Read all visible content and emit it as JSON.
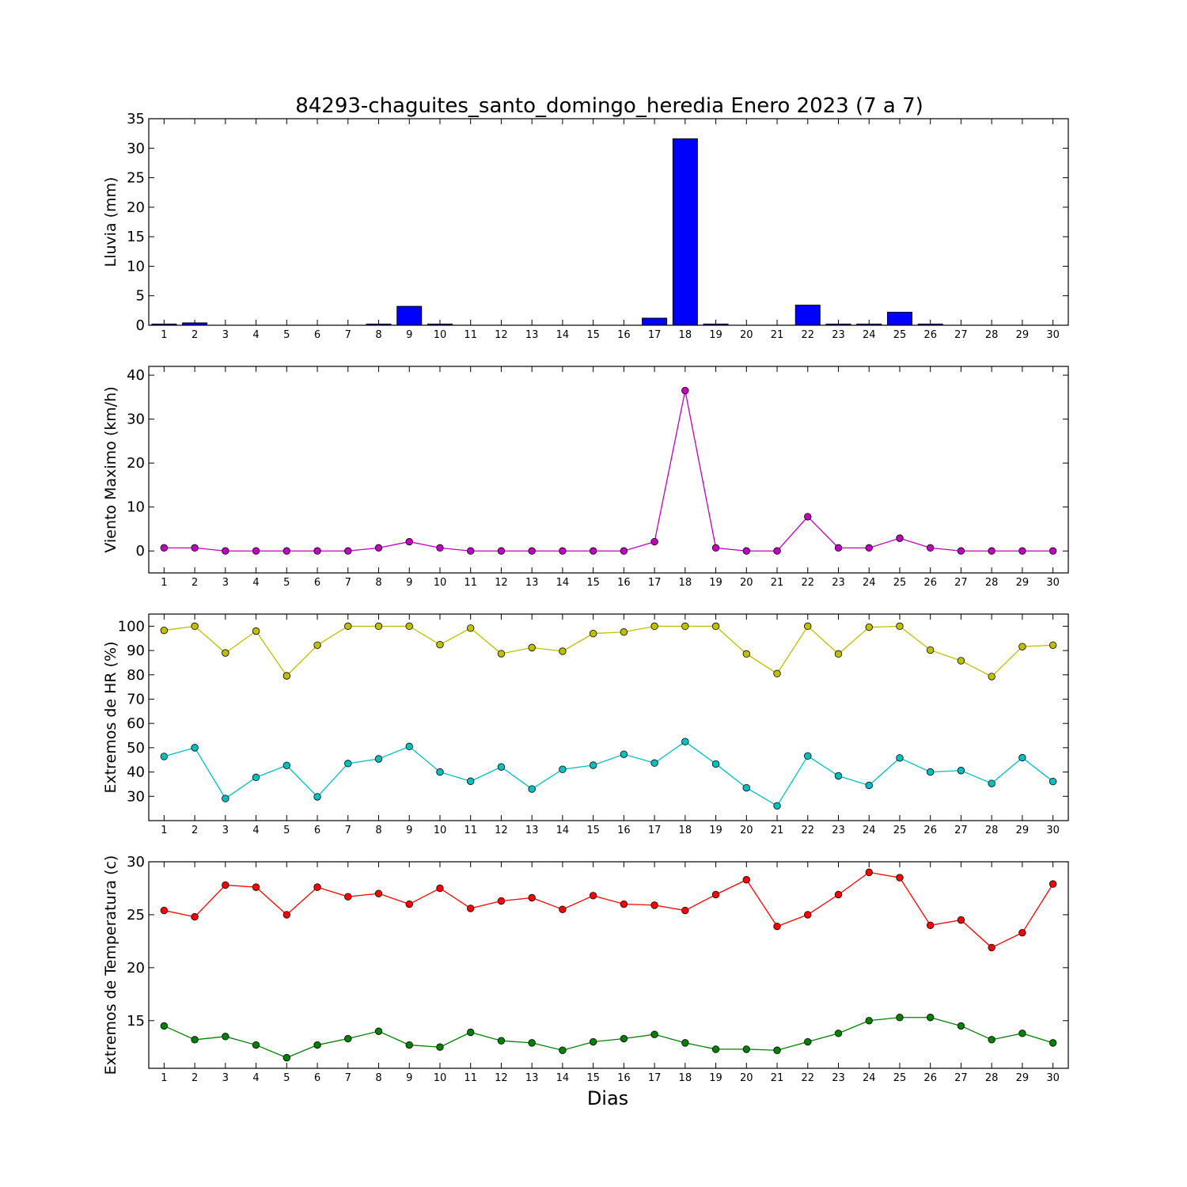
{
  "chart_data": {
    "title": "84293-chaguites_santo_domingo_heredia Enero 2023  (7 a 7)",
    "xlabel": "Dias",
    "x": [
      1,
      2,
      3,
      4,
      5,
      6,
      7,
      8,
      9,
      10,
      11,
      12,
      13,
      14,
      15,
      16,
      17,
      18,
      19,
      20,
      21,
      22,
      23,
      24,
      25,
      26,
      27,
      28,
      29,
      30
    ],
    "panels": [
      {
        "type": "bar",
        "ylabel": "Lluvia (mm)",
        "ylim": [
          0,
          35
        ],
        "yticks": [
          0,
          5,
          10,
          15,
          20,
          25,
          30,
          35
        ],
        "series": [
          {
            "color": "#0000ff",
            "values": [
              0.2,
              0.4,
              0,
              0,
              0,
              0,
              0,
              0.2,
              3.2,
              0.2,
              0,
              0,
              0,
              0,
              0,
              0,
              1.2,
              31.6,
              0.2,
              0,
              0,
              3.4,
              0.2,
              0.2,
              2.2,
              0.2,
              0,
              0,
              0,
              0
            ]
          }
        ]
      },
      {
        "type": "line",
        "ylabel": "Viento Maximo (km/h)",
        "ylim": [
          -5,
          42
        ],
        "yticks": [
          0,
          10,
          20,
          30,
          40
        ],
        "series": [
          {
            "color": "#bf00bf",
            "values": [
              0.7,
              0.7,
              0,
              0,
              0,
              0,
              0,
              0.7,
              2.1,
              0.7,
              0,
              0,
              0,
              0,
              0,
              0,
              2.1,
              36.5,
              0.7,
              0,
              0,
              7.8,
              0.7,
              0.7,
              2.9,
              0.7,
              0,
              0,
              0,
              0
            ]
          }
        ]
      },
      {
        "type": "line",
        "ylabel": "Extremos de HR (%)",
        "ylim": [
          20,
          105
        ],
        "yticks": [
          30,
          40,
          50,
          60,
          70,
          80,
          90,
          100
        ],
        "series": [
          {
            "color": "#bfbf00",
            "values": [
              98.3,
              100,
              89,
              98,
              79.6,
              92.2,
              100,
              100,
              100,
              92.4,
              99.2,
              88.7,
              91.2,
              89.7,
              97,
              97.6,
              100,
              100,
              100,
              88.6,
              80.5,
              100,
              88.6,
              99.6,
              100,
              90.2,
              85.8,
              79.3,
              91.6,
              92.2
            ]
          },
          {
            "color": "#00bfbf",
            "values": [
              46.4,
              50,
              29.1,
              37.8,
              42.7,
              29.8,
              43.5,
              45.4,
              50.5,
              40,
              36.2,
              42.1,
              33,
              41.1,
              42.8,
              47.3,
              43.7,
              52.5,
              43.3,
              33.5,
              26.1,
              46.6,
              38.4,
              34.5,
              45.8,
              40,
              40.6,
              35.3,
              45.9,
              36.1
            ]
          }
        ]
      },
      {
        "type": "line",
        "ylabel": "Extremos de Temperatura (c)",
        "ylim": [
          10.5,
          30
        ],
        "yticks": [
          15,
          20,
          25,
          30
        ],
        "series": [
          {
            "color": "#ff0000",
            "values": [
              25.4,
              24.8,
              27.8,
              27.6,
              25,
              27.6,
              26.7,
              27,
              26,
              27.5,
              25.6,
              26.3,
              26.6,
              25.5,
              26.8,
              26,
              25.9,
              25.4,
              26.9,
              28.3,
              23.9,
              25,
              26.9,
              29,
              28.5,
              24,
              24.5,
              21.9,
              23.3,
              27.9
            ]
          },
          {
            "color": "#008000",
            "values": [
              14.5,
              13.2,
              13.5,
              12.7,
              11.5,
              12.7,
              13.3,
              14,
              12.7,
              12.5,
              13.9,
              13.1,
              12.9,
              12.2,
              13,
              13.3,
              13.7,
              12.9,
              12.3,
              12.3,
              12.2,
              13,
              13.8,
              15,
              15.3,
              15.3,
              14.5,
              13.2,
              13.8,
              12.9
            ]
          }
        ]
      }
    ]
  }
}
